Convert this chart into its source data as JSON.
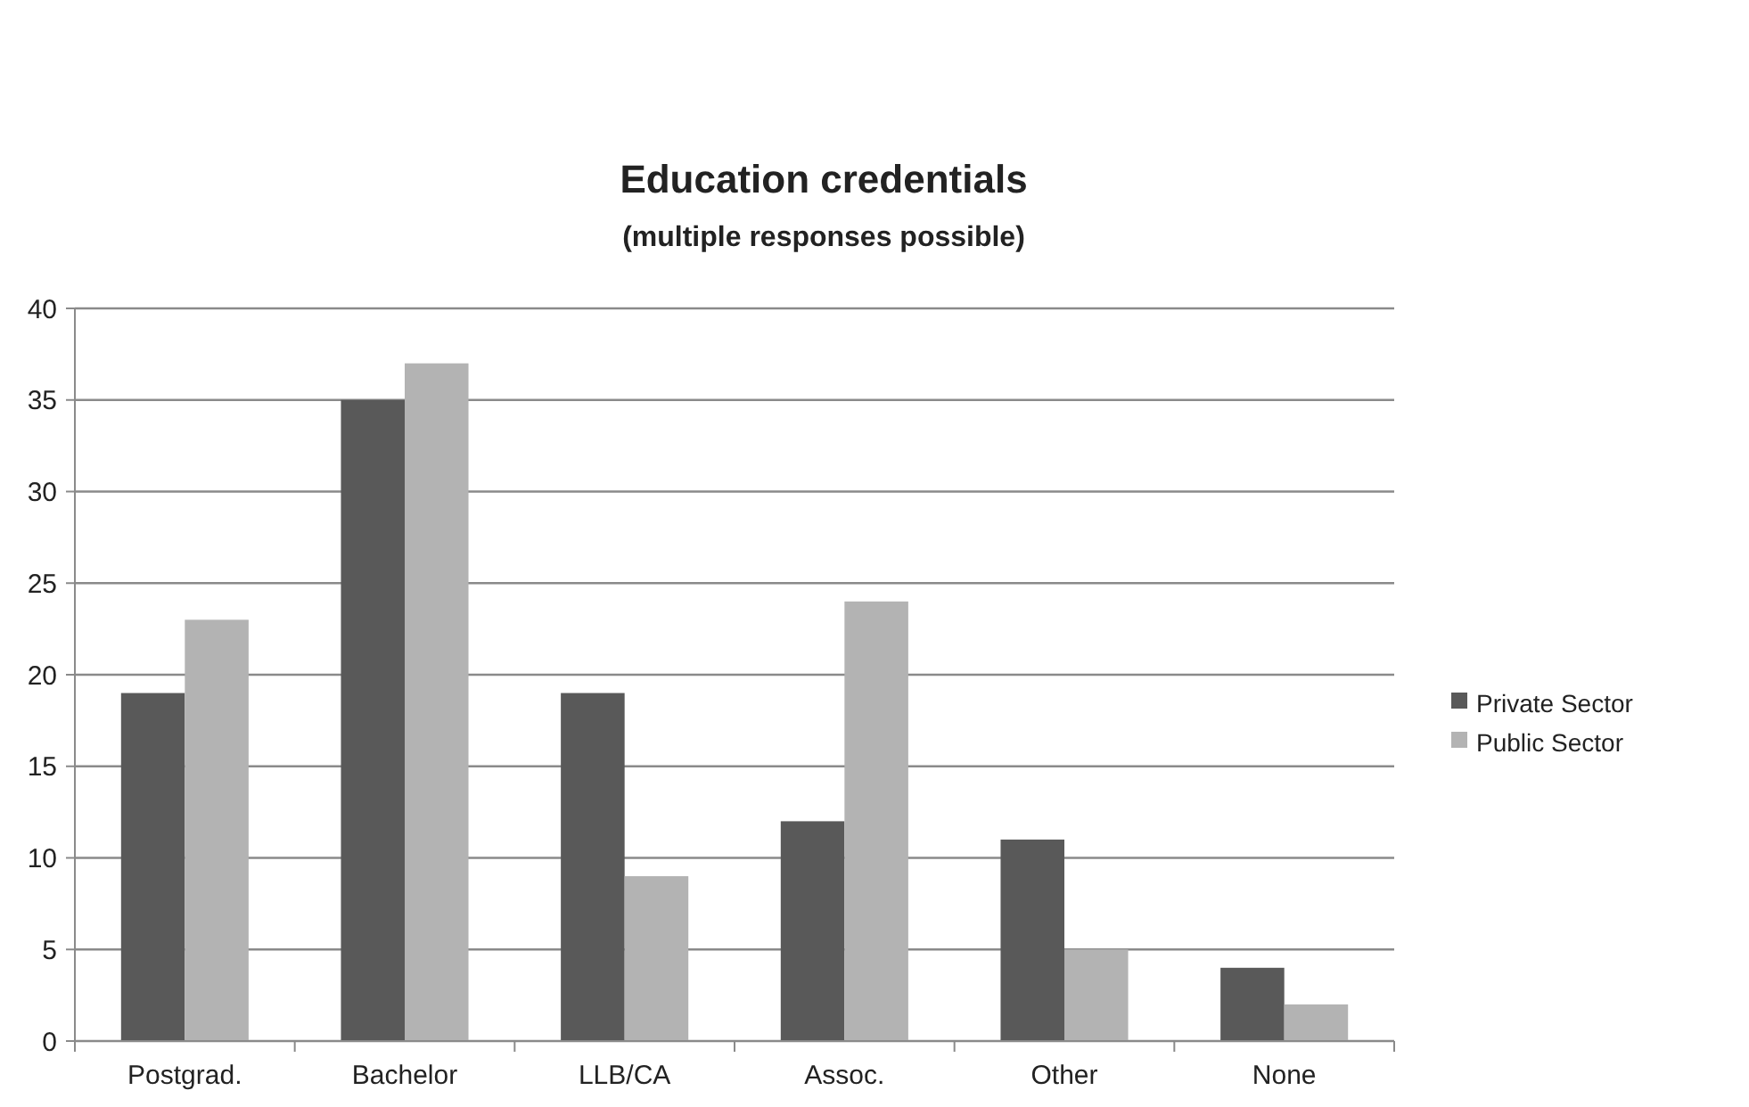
{
  "chart_data": {
    "type": "bar",
    "title": "Education credentials",
    "subtitle": "(multiple responses possible)",
    "categories": [
      "Postgrad.",
      "Bachelor",
      "LLB/CA",
      "Assoc.",
      "Other",
      "None"
    ],
    "series": [
      {
        "name": "Private Sector",
        "color": "#595959",
        "values": [
          19,
          35,
          19,
          12,
          11,
          4
        ]
      },
      {
        "name": "Public Sector",
        "color": "#b3b3b3",
        "values": [
          23,
          37,
          9,
          24,
          5,
          2
        ]
      }
    ],
    "ylim": [
      0,
      40
    ],
    "yticks": [
      0,
      5,
      10,
      15,
      20,
      25,
      30,
      35,
      40
    ],
    "grid": "y",
    "legend": "right"
  }
}
